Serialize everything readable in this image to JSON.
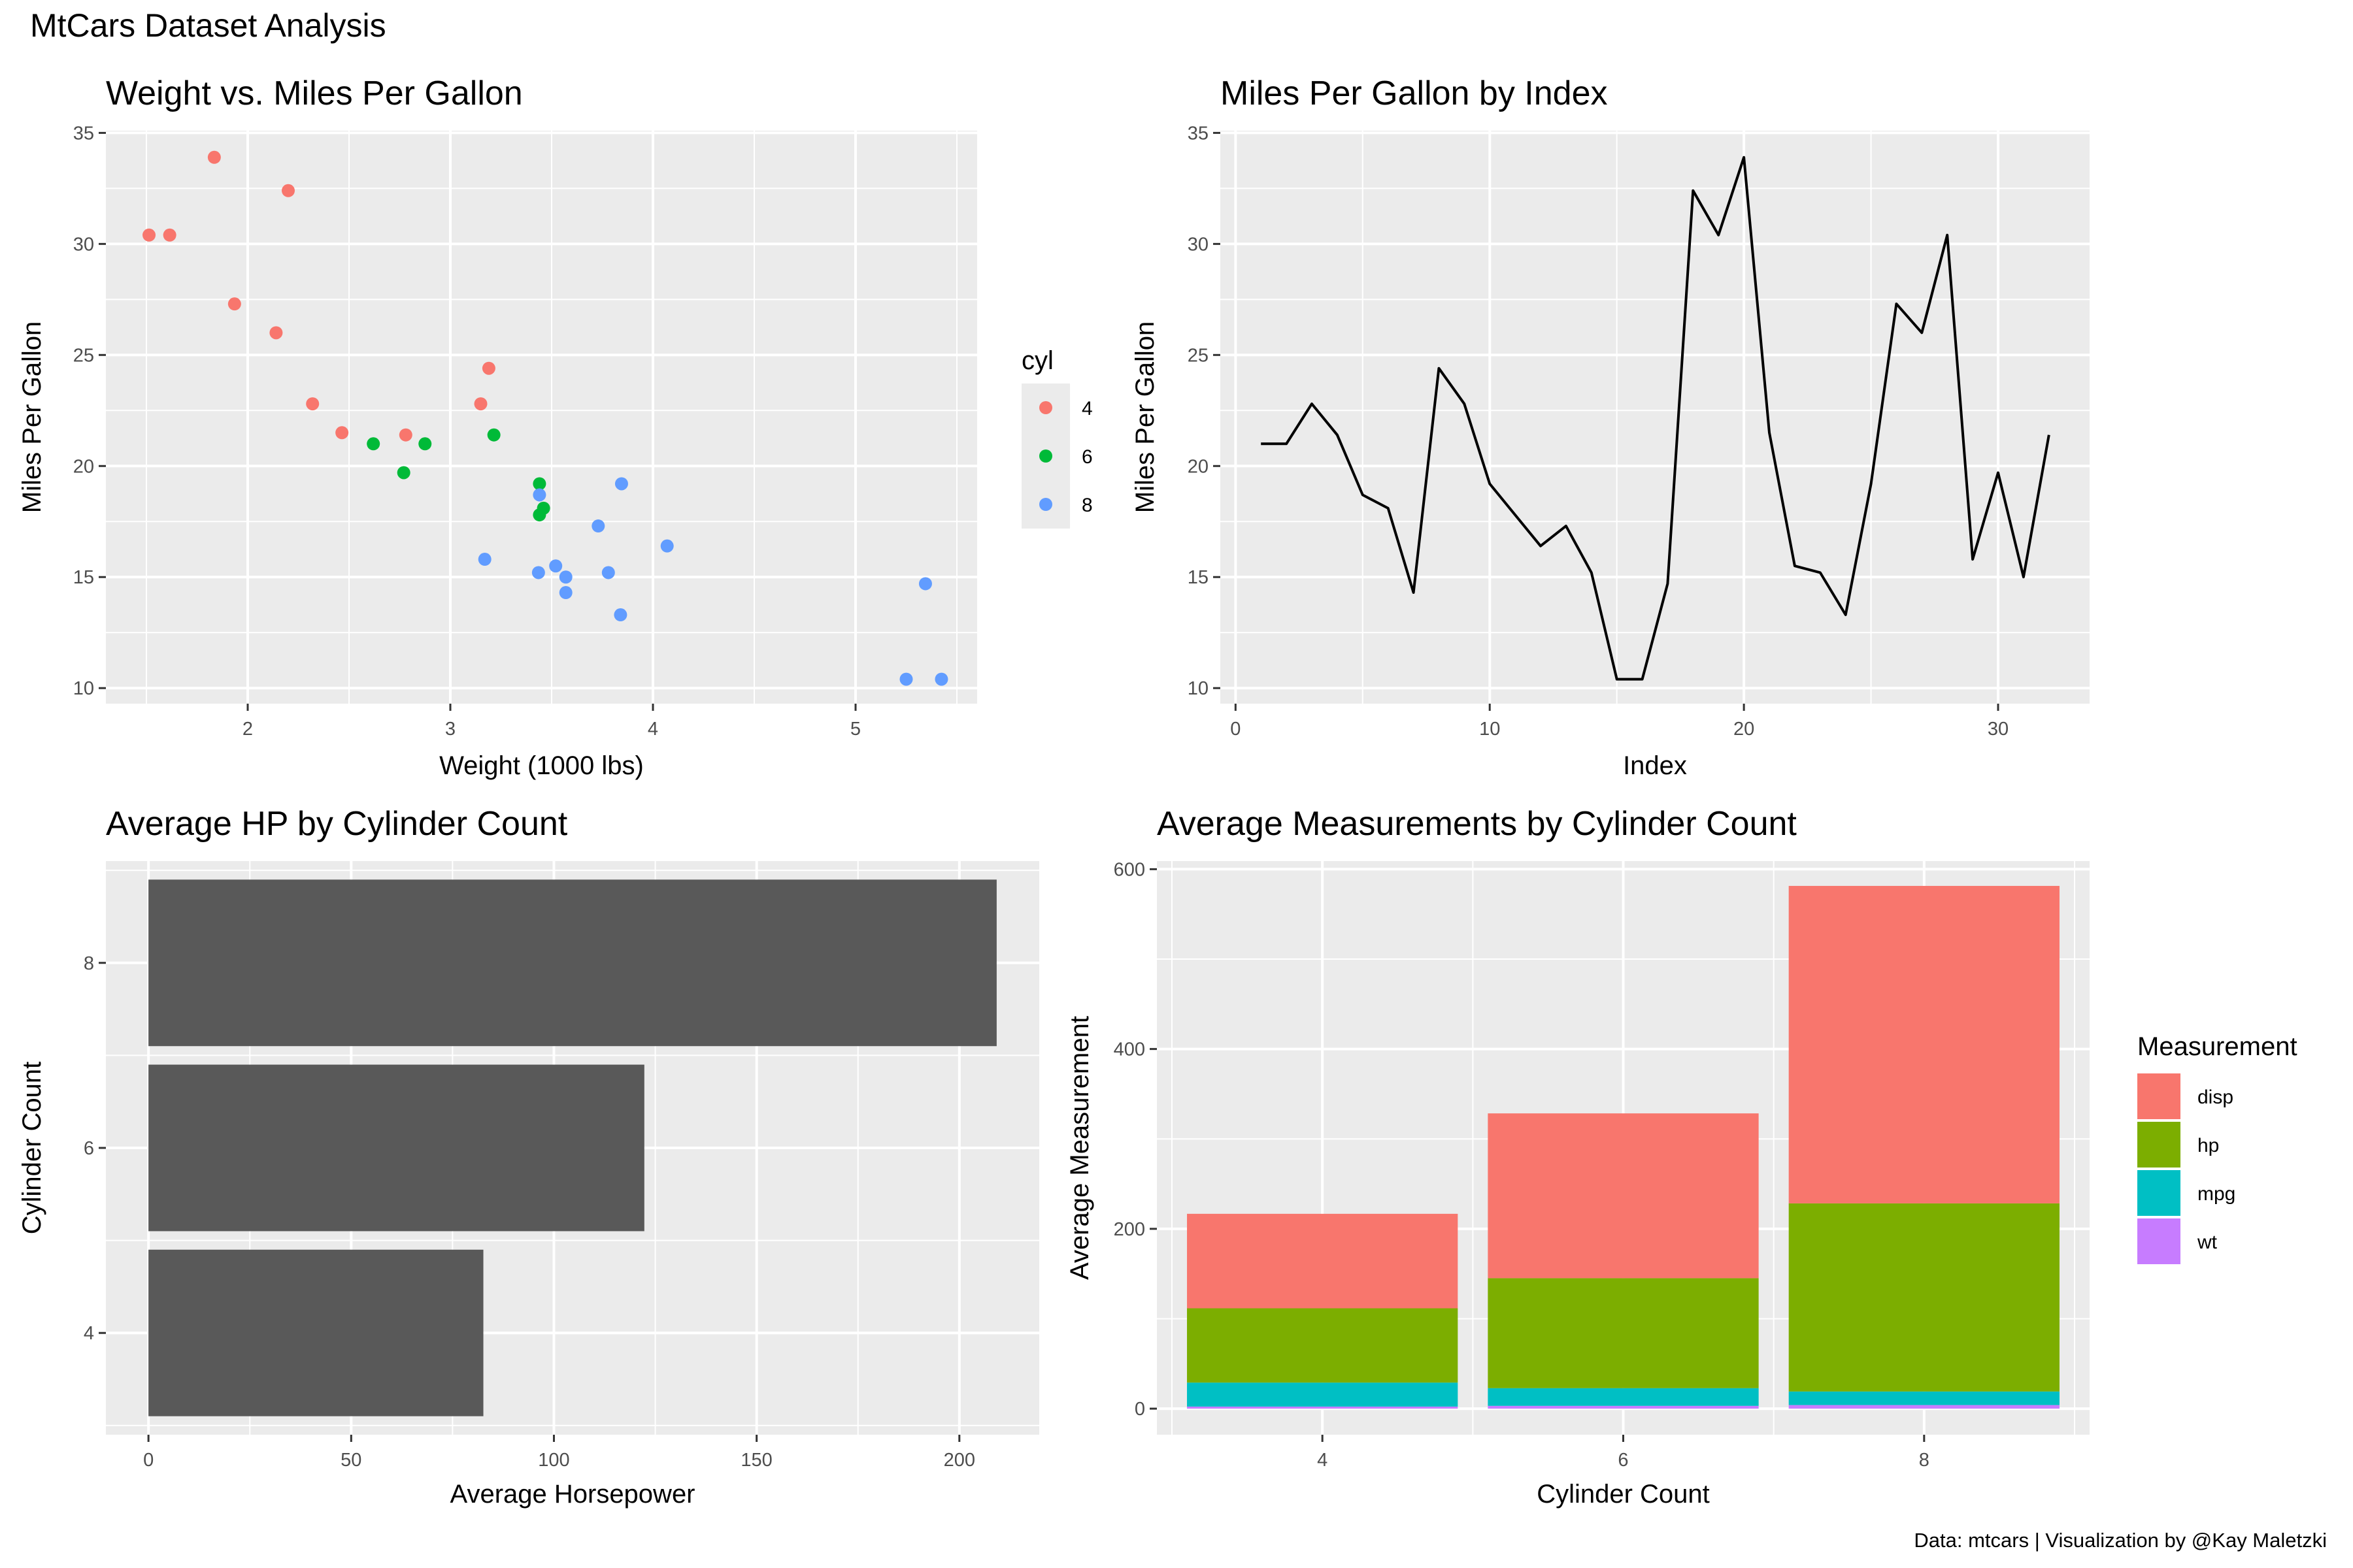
{
  "page": {
    "title": "MtCars Dataset Analysis",
    "caption": "Data: mtcars | Visualization by @Kay Maletzki",
    "colors": {
      "panel_bg": "#EBEBEB",
      "grid": "#FFFFFF",
      "bar_fill": "#595959",
      "line": "#000000",
      "tick_text": "#4D4D4D"
    }
  },
  "chart_data": [
    {
      "type": "scatter",
      "title": "Weight vs. Miles Per Gallon",
      "xlabel": "Weight (1000 lbs)",
      "ylabel": "Miles Per Gallon",
      "xlim": [
        1.3,
        5.6
      ],
      "ylim": [
        9.3,
        35.1
      ],
      "xticks": [
        2,
        3,
        4,
        5
      ],
      "yticks": [
        10,
        15,
        20,
        25,
        30,
        35
      ],
      "grid": true,
      "legend": {
        "title": "cyl",
        "position": "right",
        "entries": [
          "4",
          "6",
          "8"
        ],
        "colors": [
          "#F8766D",
          "#00BA38",
          "#619CFF"
        ]
      },
      "series": [
        {
          "name": "4",
          "color": "#F8766D",
          "points": [
            [
              2.32,
              22.8
            ],
            [
              3.19,
              24.4
            ],
            [
              3.15,
              22.8
            ],
            [
              2.2,
              32.4
            ],
            [
              1.615,
              30.4
            ],
            [
              1.835,
              33.9
            ],
            [
              2.465,
              21.5
            ],
            [
              1.935,
              27.3
            ],
            [
              2.14,
              26.0
            ],
            [
              1.513,
              30.4
            ],
            [
              2.78,
              21.4
            ]
          ]
        },
        {
          "name": "6",
          "color": "#00BA38",
          "points": [
            [
              2.62,
              21.0
            ],
            [
              2.875,
              21.0
            ],
            [
              3.215,
              21.4
            ],
            [
              3.46,
              18.1
            ],
            [
              3.44,
              19.2
            ],
            [
              3.44,
              17.8
            ],
            [
              2.77,
              19.7
            ]
          ]
        },
        {
          "name": "8",
          "color": "#619CFF",
          "points": [
            [
              3.44,
              18.7
            ],
            [
              3.57,
              14.3
            ],
            [
              4.07,
              16.4
            ],
            [
              3.73,
              17.3
            ],
            [
              3.78,
              15.2
            ],
            [
              5.25,
              10.4
            ],
            [
              5.424,
              10.4
            ],
            [
              5.345,
              14.7
            ],
            [
              3.52,
              15.5
            ],
            [
              3.435,
              15.2
            ],
            [
              3.84,
              13.3
            ],
            [
              3.845,
              19.2
            ],
            [
              3.17,
              15.8
            ],
            [
              3.57,
              15.0
            ]
          ]
        }
      ]
    },
    {
      "type": "line",
      "title": "Miles Per Gallon by Index",
      "xlabel": "Index",
      "ylabel": "Miles Per Gallon",
      "xlim": [
        -0.6,
        33.6
      ],
      "ylim": [
        9.3,
        35.1
      ],
      "xticks": [
        0,
        10,
        20,
        30
      ],
      "yticks": [
        10,
        15,
        20,
        25,
        30,
        35
      ],
      "grid": true,
      "series": [
        {
          "color": "#000000",
          "x": [
            1,
            2,
            3,
            4,
            5,
            6,
            7,
            8,
            9,
            10,
            11,
            12,
            13,
            14,
            15,
            16,
            17,
            18,
            19,
            20,
            21,
            22,
            23,
            24,
            25,
            26,
            27,
            28,
            29,
            30,
            31,
            32
          ],
          "values": [
            21.0,
            21.0,
            22.8,
            21.4,
            18.7,
            18.1,
            14.3,
            24.4,
            22.8,
            19.2,
            17.8,
            16.4,
            17.3,
            15.2,
            10.4,
            10.4,
            14.7,
            32.4,
            30.4,
            33.9,
            21.5,
            15.5,
            15.2,
            13.3,
            19.2,
            27.3,
            26.0,
            30.4,
            15.8,
            19.7,
            15.0,
            21.4
          ]
        }
      ]
    },
    {
      "type": "bar",
      "orientation": "horizontal",
      "title": "Average HP by Cylinder Count",
      "xlabel": "Average Horsepower",
      "ylabel": "Cylinder Count",
      "categories": [
        "4",
        "6",
        "8"
      ],
      "category_positions": [
        4,
        6,
        8
      ],
      "values": [
        82.6,
        122.3,
        209.2
      ],
      "xlim": [
        -10.5,
        219.7
      ],
      "ylim": [
        2.9,
        9.1
      ],
      "xticks": [
        0,
        50,
        100,
        150,
        200
      ],
      "yticks": [
        4,
        6,
        8
      ],
      "grid": true,
      "bar_color": "#595959"
    },
    {
      "type": "bar",
      "stacked": true,
      "title": "Average Measurements by Cylinder Count",
      "xlabel": "Cylinder Count",
      "ylabel": "Average Measurement",
      "categories": [
        "4",
        "6",
        "8"
      ],
      "category_positions": [
        4,
        6,
        8
      ],
      "xlim": [
        2.9,
        9.1
      ],
      "ylim": [
        -29,
        609
      ],
      "xticks": [
        4,
        6,
        8
      ],
      "yticks": [
        0,
        200,
        400,
        600
      ],
      "grid": true,
      "legend": {
        "title": "Measurement",
        "position": "right"
      },
      "series": [
        {
          "name": "disp",
          "color": "#F8766D",
          "values": [
            105.1,
            183.3,
            353.1
          ]
        },
        {
          "name": "hp",
          "color": "#7CAE00",
          "values": [
            82.6,
            122.3,
            209.2
          ]
        },
        {
          "name": "mpg",
          "color": "#00BFC4",
          "values": [
            26.7,
            19.7,
            15.1
          ]
        },
        {
          "name": "wt",
          "color": "#C77CFF",
          "values": [
            2.3,
            3.1,
            4.0
          ]
        }
      ]
    }
  ]
}
